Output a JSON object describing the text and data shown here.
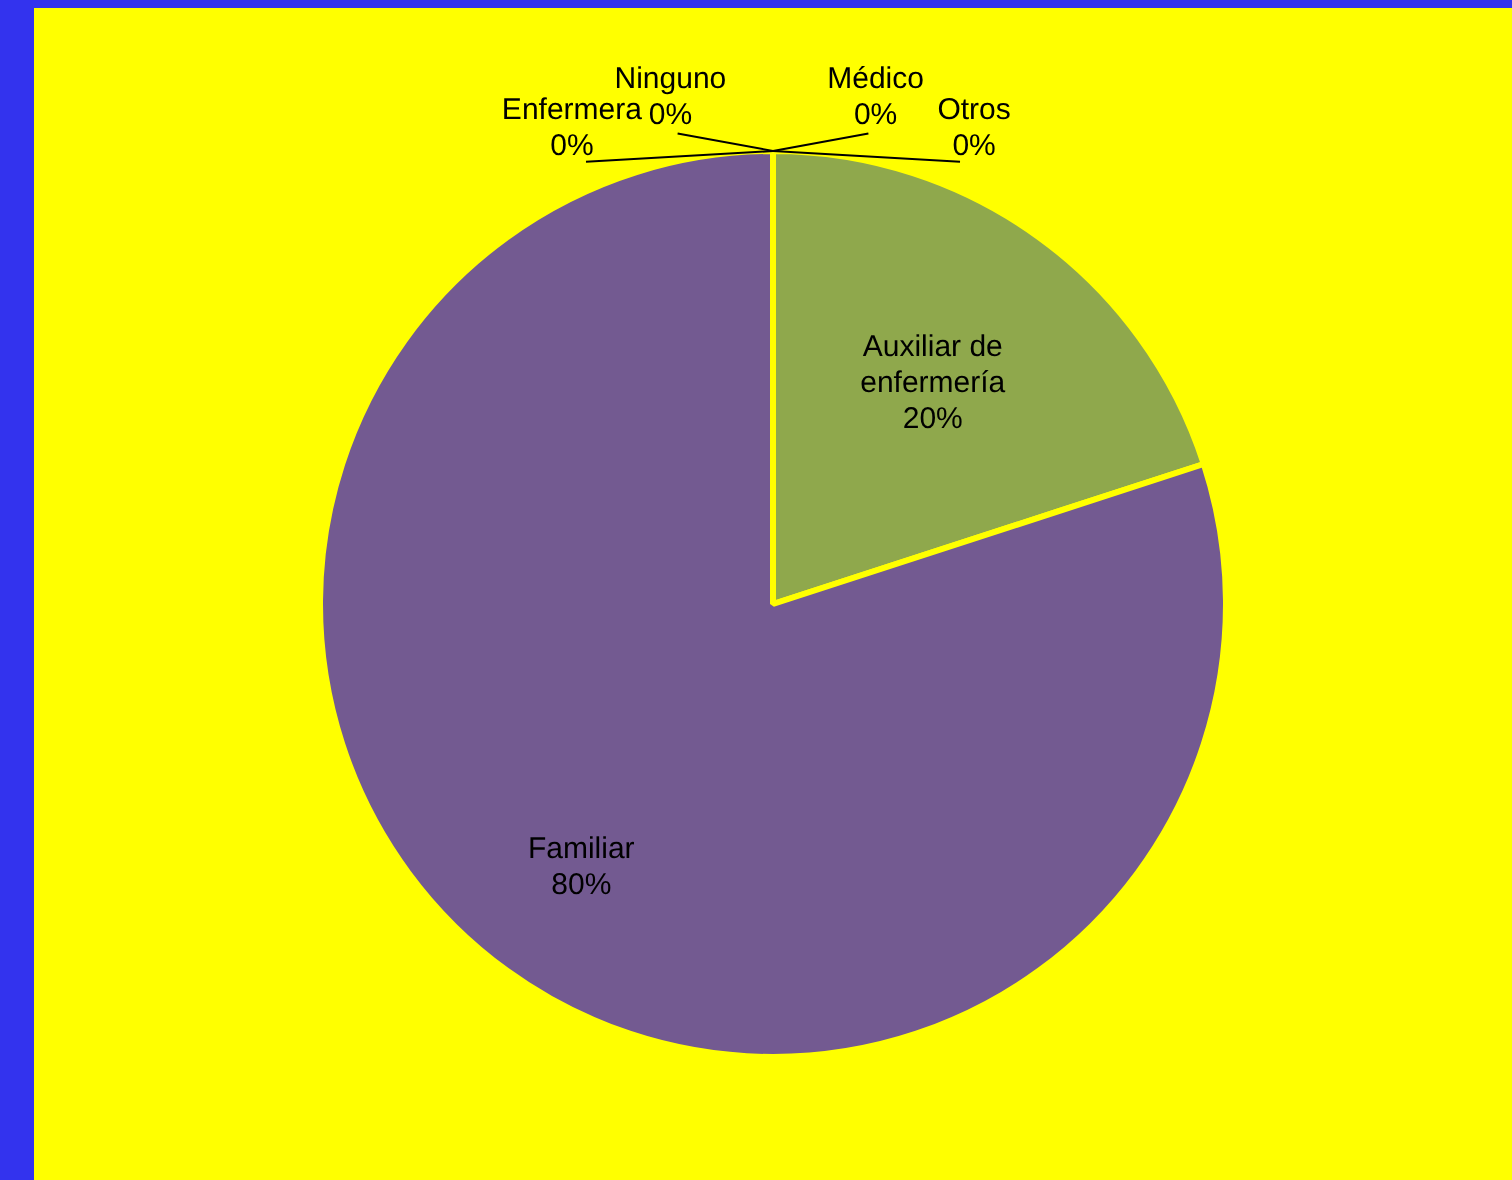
{
  "chart_data": {
    "type": "pie",
    "categories": [
      "Médico",
      "Otros",
      "Auxiliar de enfermería",
      "Familiar",
      "Enfermera",
      "Ninguno"
    ],
    "values": [
      0,
      0,
      20,
      80,
      0,
      0
    ],
    "value_labels": [
      "0%",
      "0%",
      "20%",
      "80%",
      "0%",
      "0%"
    ],
    "colors": [
      "#4f81bd",
      "#c0504d",
      "#8fa84c",
      "#735a91",
      "#4bacc6",
      "#f79646"
    ],
    "legend": false
  }
}
